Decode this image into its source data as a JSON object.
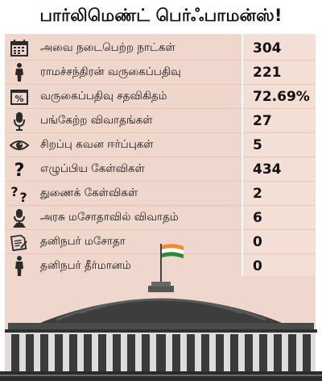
{
  "title": "பார்லிமெண்ட் பெர்ஃபாமன்ஸ்!",
  "rows": [
    {
      "icon": "calendar-icon",
      "label": "அவை நடைபெற்ற நாட்கள்",
      "value": "304"
    },
    {
      "icon": "person-icon",
      "label": "ராமச்சந்திரன் வருகைப்பதிவு",
      "value": "221"
    },
    {
      "icon": "percent-calendar-icon",
      "label": "வருகைப்பதிவு சதவிகிதம்",
      "value": "72.69%"
    },
    {
      "icon": "microphone-icon",
      "label": "பங்கேற்ற விவாதங்கள்",
      "value": "27"
    },
    {
      "icon": "eye-icon",
      "label": "சிறப்பு கவன ஈர்ப்புகள்",
      "value": "5"
    },
    {
      "icon": "question-icon",
      "label": "எழுப்பிய கேள்விகள்",
      "value": "434"
    },
    {
      "icon": "double-question-icon",
      "label": "துணைக் கேள்விகள்",
      "value": "2"
    },
    {
      "icon": "speaker-icon",
      "label": "அரசு மசோதாவில் விவாதம்",
      "value": "6"
    },
    {
      "icon": "document-icon",
      "label": "தனிநபர் மசோதா",
      "value": "0"
    },
    {
      "icon": "standing-person-icon",
      "label": "தனிநபர் தீர்மானம்",
      "value": "0"
    }
  ],
  "colors": {
    "panel": "#f0d7cd",
    "icon_bg": "#2b2b2b",
    "flag_saffron": "#f28c28",
    "flag_green": "#2e8b3a"
  }
}
